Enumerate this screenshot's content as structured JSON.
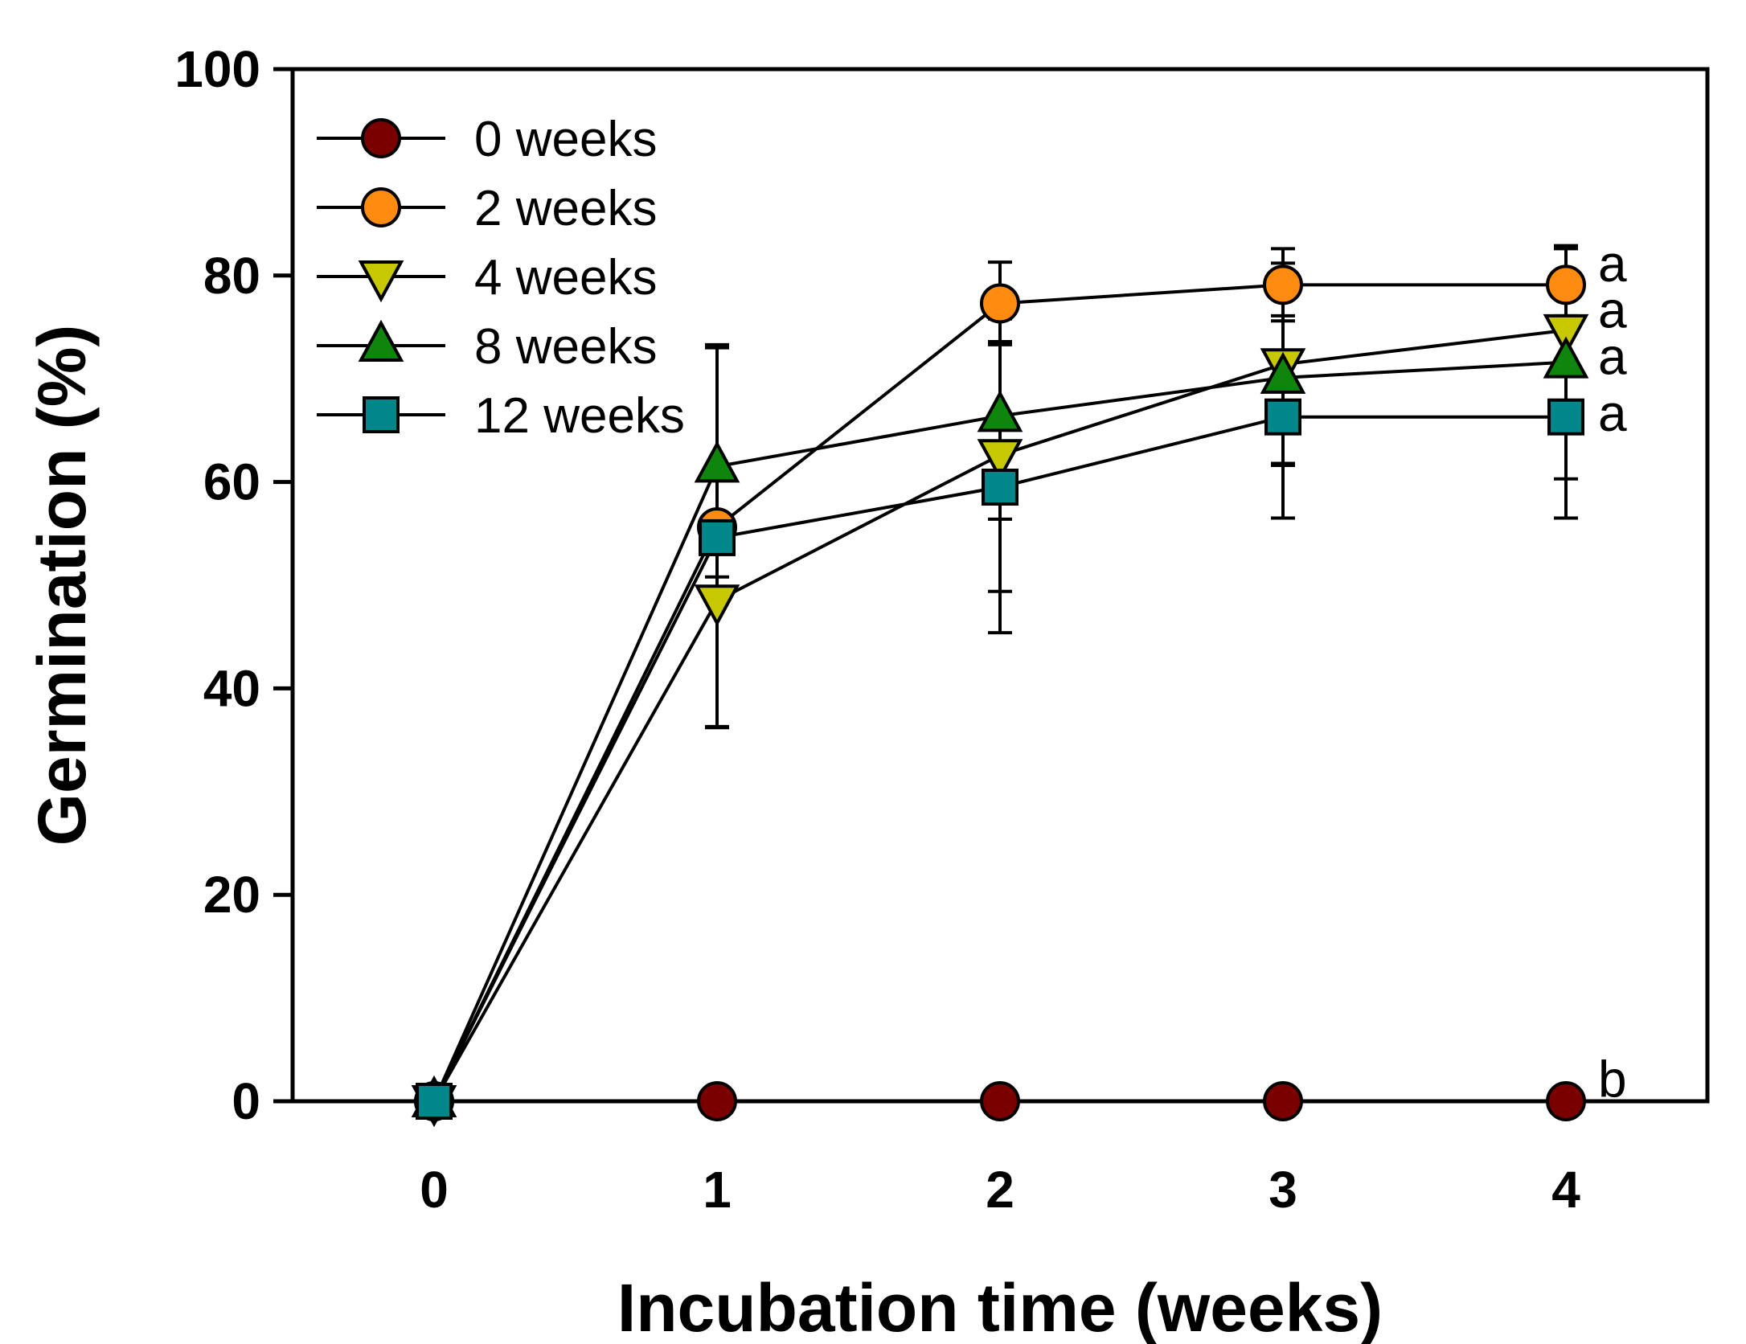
{
  "chart_data": {
    "type": "line",
    "title": "",
    "xlabel": "Incubation time (weeks)",
    "ylabel": "Germination (%)",
    "xlim": [
      -0.5,
      4.5
    ],
    "ylim": [
      0,
      100
    ],
    "x_ticks": [
      0,
      1,
      2,
      3,
      4
    ],
    "y_ticks": [
      0,
      20,
      40,
      60,
      80,
      100
    ],
    "grid": false,
    "legend_position": "top-left",
    "x": [
      0,
      1,
      2,
      3,
      4
    ],
    "series": [
      {
        "name": "0 weeks",
        "marker": "circle",
        "color": "#7a0000",
        "values": [
          0,
          0,
          0,
          0,
          0
        ],
        "errors": [
          0,
          0,
          0,
          0,
          0
        ]
      },
      {
        "name": "2 weeks",
        "marker": "circle",
        "color": "#ff8c10",
        "values": [
          0,
          55.6,
          77.3,
          79.1,
          79.1
        ],
        "errors": [
          0,
          4.8,
          4.0,
          3.5,
          3.5
        ]
      },
      {
        "name": "4 weeks",
        "marker": "triangle-down",
        "color": "#c8c800",
        "values": [
          0,
          48.5,
          62.6,
          71.4,
          74.7
        ],
        "errors": [
          0,
          12.2,
          13.2,
          9.8,
          8.0
        ]
      },
      {
        "name": "8 weeks",
        "marker": "triangle-up",
        "color": "#0e860e",
        "values": [
          0,
          61.5,
          66.4,
          70.1,
          71.6
        ],
        "errors": [
          0,
          11.8,
          10.0,
          8.3,
          11.3
        ]
      },
      {
        "name": "12 weeks",
        "marker": "square",
        "color": "#00878c",
        "values": [
          0,
          54.6,
          59.5,
          66.3,
          66.3
        ],
        "errors": [
          0,
          18.4,
          14.1,
          9.8,
          9.8
        ]
      }
    ],
    "annotations": [
      {
        "text": "a",
        "x": 4,
        "y": 81.0
      },
      {
        "text": "a",
        "x": 4,
        "y": 76.5
      },
      {
        "text": "a",
        "x": 4,
        "y": 72.0
      },
      {
        "text": "a",
        "x": 4,
        "y": 66.5
      },
      {
        "text": "b",
        "x": 4,
        "y": 2.0
      }
    ]
  }
}
